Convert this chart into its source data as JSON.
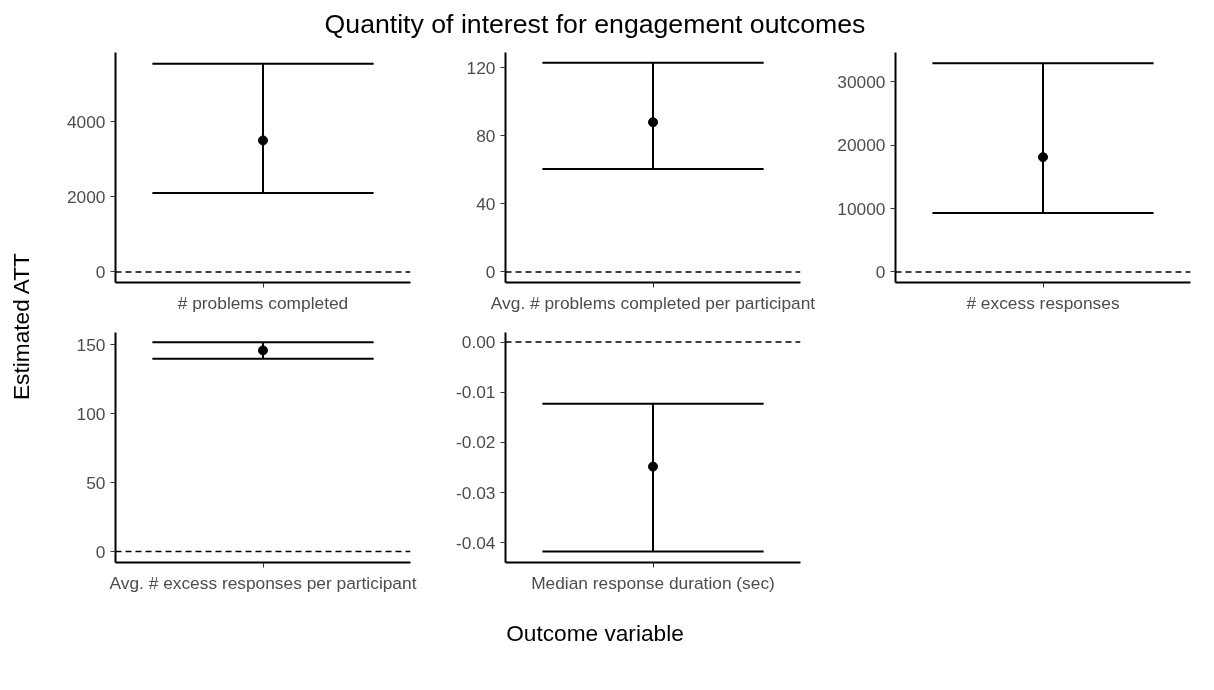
{
  "chart_data": [
    {
      "type": "scatter",
      "title": "Quantity of interest for engagement outcomes",
      "ylabel": "Estimated ATT",
      "categories": [
        "# problems completed"
      ],
      "values": [
        3500
      ],
      "errors": [
        [
          2100,
          5540
        ]
      ],
      "ylim": [
        -280,
        5840
      ],
      "yticks": [
        0,
        2000,
        4000
      ],
      "ref_lines": [
        {
          "axis": "y",
          "value": 0,
          "line_style": "dashed",
          "color": "#000000"
        }
      ],
      "marker": "circle",
      "color": "#000000"
    },
    {
      "type": "scatter",
      "categories": [
        "Avg. # problems completed per participant"
      ],
      "values": [
        88
      ],
      "errors": [
        [
          60.5,
          123
        ]
      ],
      "ylim": [
        -6.2,
        129
      ],
      "yticks": [
        0,
        40,
        80,
        120
      ],
      "ref_lines": [
        {
          "axis": "y",
          "value": 0,
          "line_style": "dashed",
          "color": "#000000"
        }
      ],
      "marker": "circle",
      "color": "#000000"
    },
    {
      "type": "scatter",
      "categories": [
        "# excess responses"
      ],
      "values": [
        18100
      ],
      "errors": [
        [
          9300,
          32900
        ]
      ],
      "ylim": [
        -1660,
        34600
      ],
      "yticks": [
        0,
        10000,
        20000,
        30000
      ],
      "ref_lines": [
        {
          "axis": "y",
          "value": 0,
          "line_style": "dashed",
          "color": "#000000"
        }
      ],
      "marker": "circle",
      "color": "#000000"
    },
    {
      "type": "scatter",
      "categories": [
        "Avg. # excess responses per participant"
      ],
      "values": [
        146
      ],
      "errors": [
        [
          140,
          152
        ]
      ],
      "ylim": [
        -7.9,
        159
      ],
      "yticks": [
        0,
        50,
        100,
        150
      ],
      "ref_lines": [
        {
          "axis": "y",
          "value": 0,
          "line_style": "dashed",
          "color": "#000000"
        }
      ],
      "marker": "circle",
      "color": "#000000"
    },
    {
      "type": "scatter",
      "xlabel": "Outcome variable",
      "categories": [
        "Median response duration (sec)"
      ],
      "values": [
        -0.0248
      ],
      "errors": [
        [
          -0.0417,
          -0.0123
        ]
      ],
      "ylim": [
        -0.0439,
        0.0019
      ],
      "yticks": [
        {
          "value": 0,
          "label": "0.00"
        },
        {
          "value": -0.01,
          "label": "-0.01"
        },
        {
          "value": -0.02,
          "label": "-0.02"
        },
        {
          "value": -0.03,
          "label": "-0.03"
        },
        {
          "value": -0.04,
          "label": "-0.04"
        }
      ],
      "ref_lines": [
        {
          "axis": "y",
          "value": 0,
          "line_style": "dashed",
          "color": "#000000"
        }
      ],
      "marker": "circle",
      "color": "#000000"
    }
  ]
}
